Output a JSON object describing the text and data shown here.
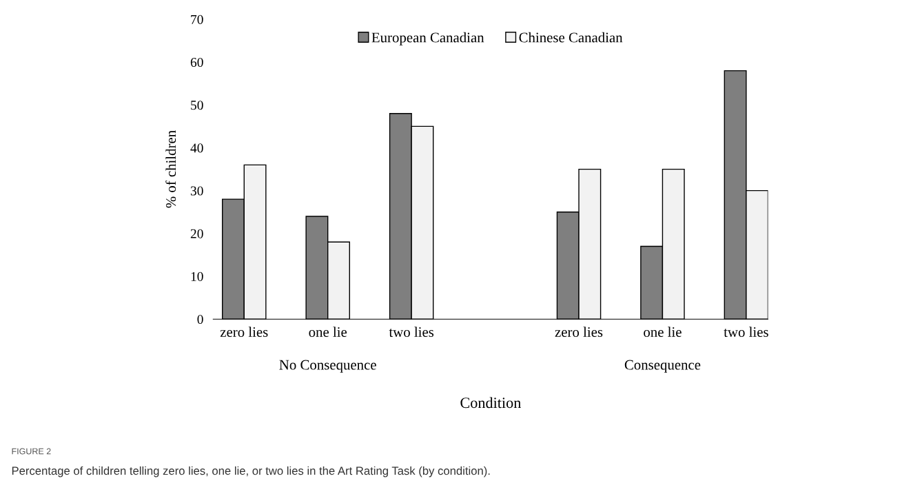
{
  "chart_data": {
    "type": "bar",
    "categories": [
      "zero lies",
      "one lie",
      "two lies",
      null,
      "zero lies",
      "one lie",
      "two lies"
    ],
    "series": [
      {
        "name": "European Canadian",
        "color": "#7f7f7f",
        "values": [
          28,
          24,
          48,
          null,
          25,
          17,
          58
        ]
      },
      {
        "name": "Chinese Canadian",
        "color": "#f2f2f2",
        "values": [
          36,
          18,
          45,
          null,
          35,
          35,
          30
        ]
      }
    ],
    "ylabel": "% of children",
    "xlabel": "Condition",
    "ylim": [
      0,
      70
    ],
    "yticks": [
      0,
      10,
      20,
      30,
      40,
      50,
      60,
      70
    ],
    "legend": "top",
    "grid": false,
    "annotations": [
      "No Consequence",
      "Consequence",
      "FIGURE 2",
      "Percentage of children telling zero lies, one lie, or two lies in the Art Rating Task (by condition)."
    ]
  }
}
